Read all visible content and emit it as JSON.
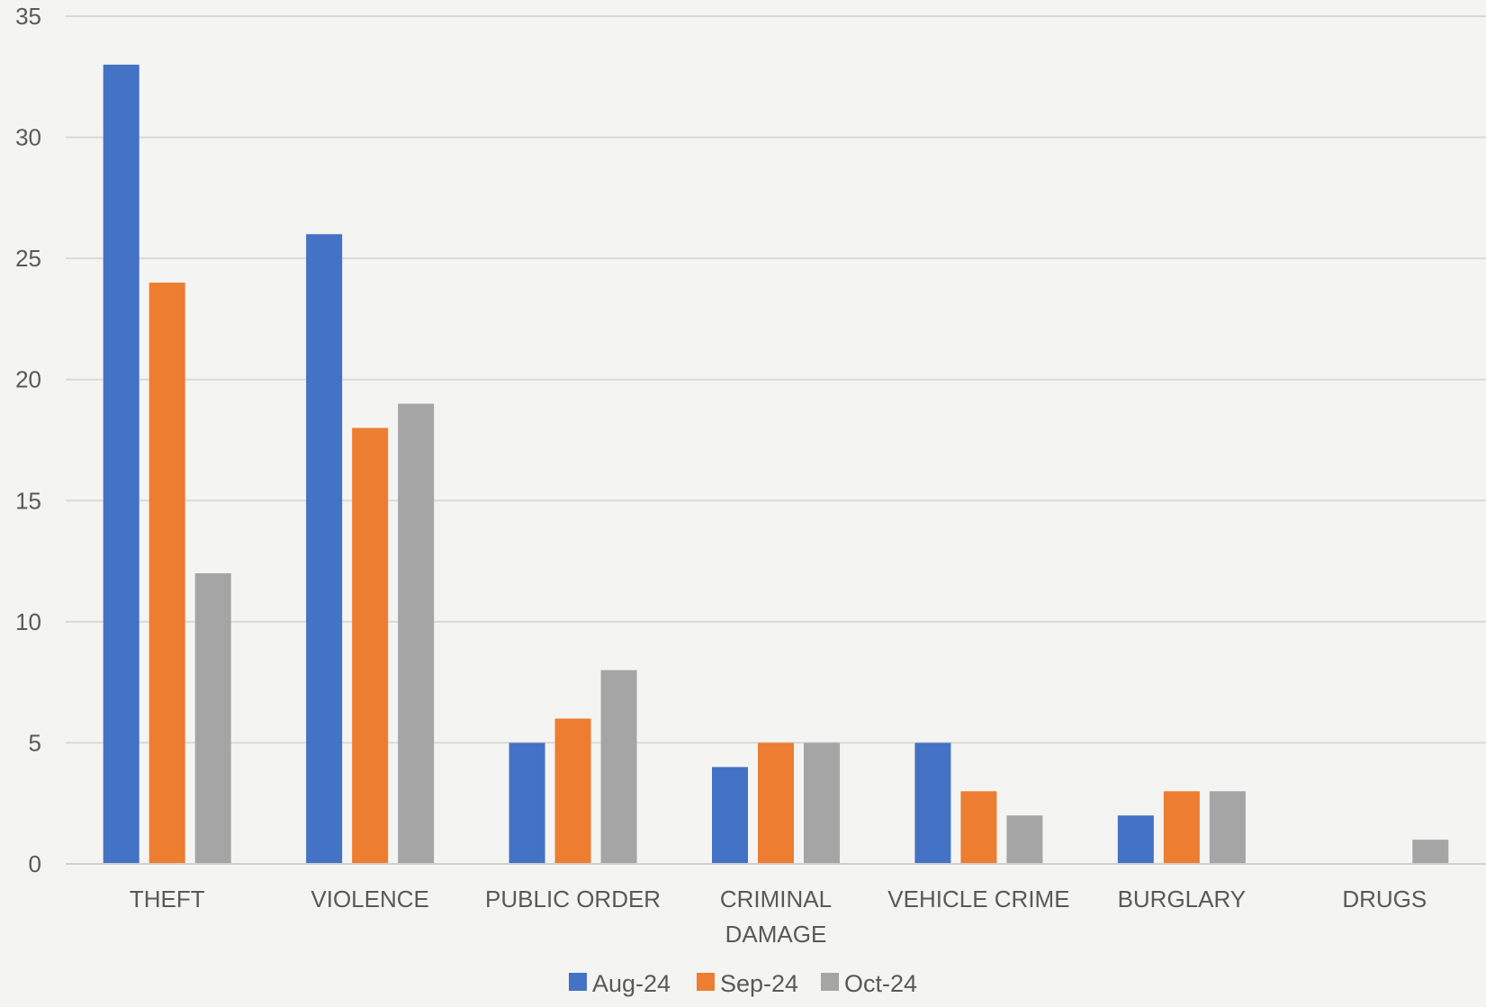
{
  "chart_data": {
    "type": "bar",
    "title": "",
    "xlabel": "",
    "ylabel": "",
    "ylim": [
      0,
      35
    ],
    "yticks": [
      "0",
      "5",
      "10",
      "15",
      "20",
      "25",
      "30",
      "35"
    ],
    "grid": true,
    "legend_position": "bottom",
    "categories": [
      [
        "THEFT"
      ],
      [
        "VIOLENCE"
      ],
      [
        "PUBLIC ORDER"
      ],
      [
        "CRIMINAL",
        "DAMAGE"
      ],
      [
        "VEHICLE CRIME"
      ],
      [
        "BURGLARY"
      ],
      [
        "DRUGS"
      ]
    ],
    "series": [
      {
        "name": "Aug-24",
        "color": "#4472c4",
        "values": [
          33,
          26,
          5,
          4,
          5,
          2,
          0
        ]
      },
      {
        "name": "Sep-24",
        "color": "#ed7d31",
        "values": [
          24,
          18,
          6,
          5,
          3,
          3,
          0
        ]
      },
      {
        "name": "Oct-24",
        "color": "#a5a5a5",
        "values": [
          12,
          19,
          8,
          5,
          2,
          3,
          1
        ]
      }
    ]
  }
}
